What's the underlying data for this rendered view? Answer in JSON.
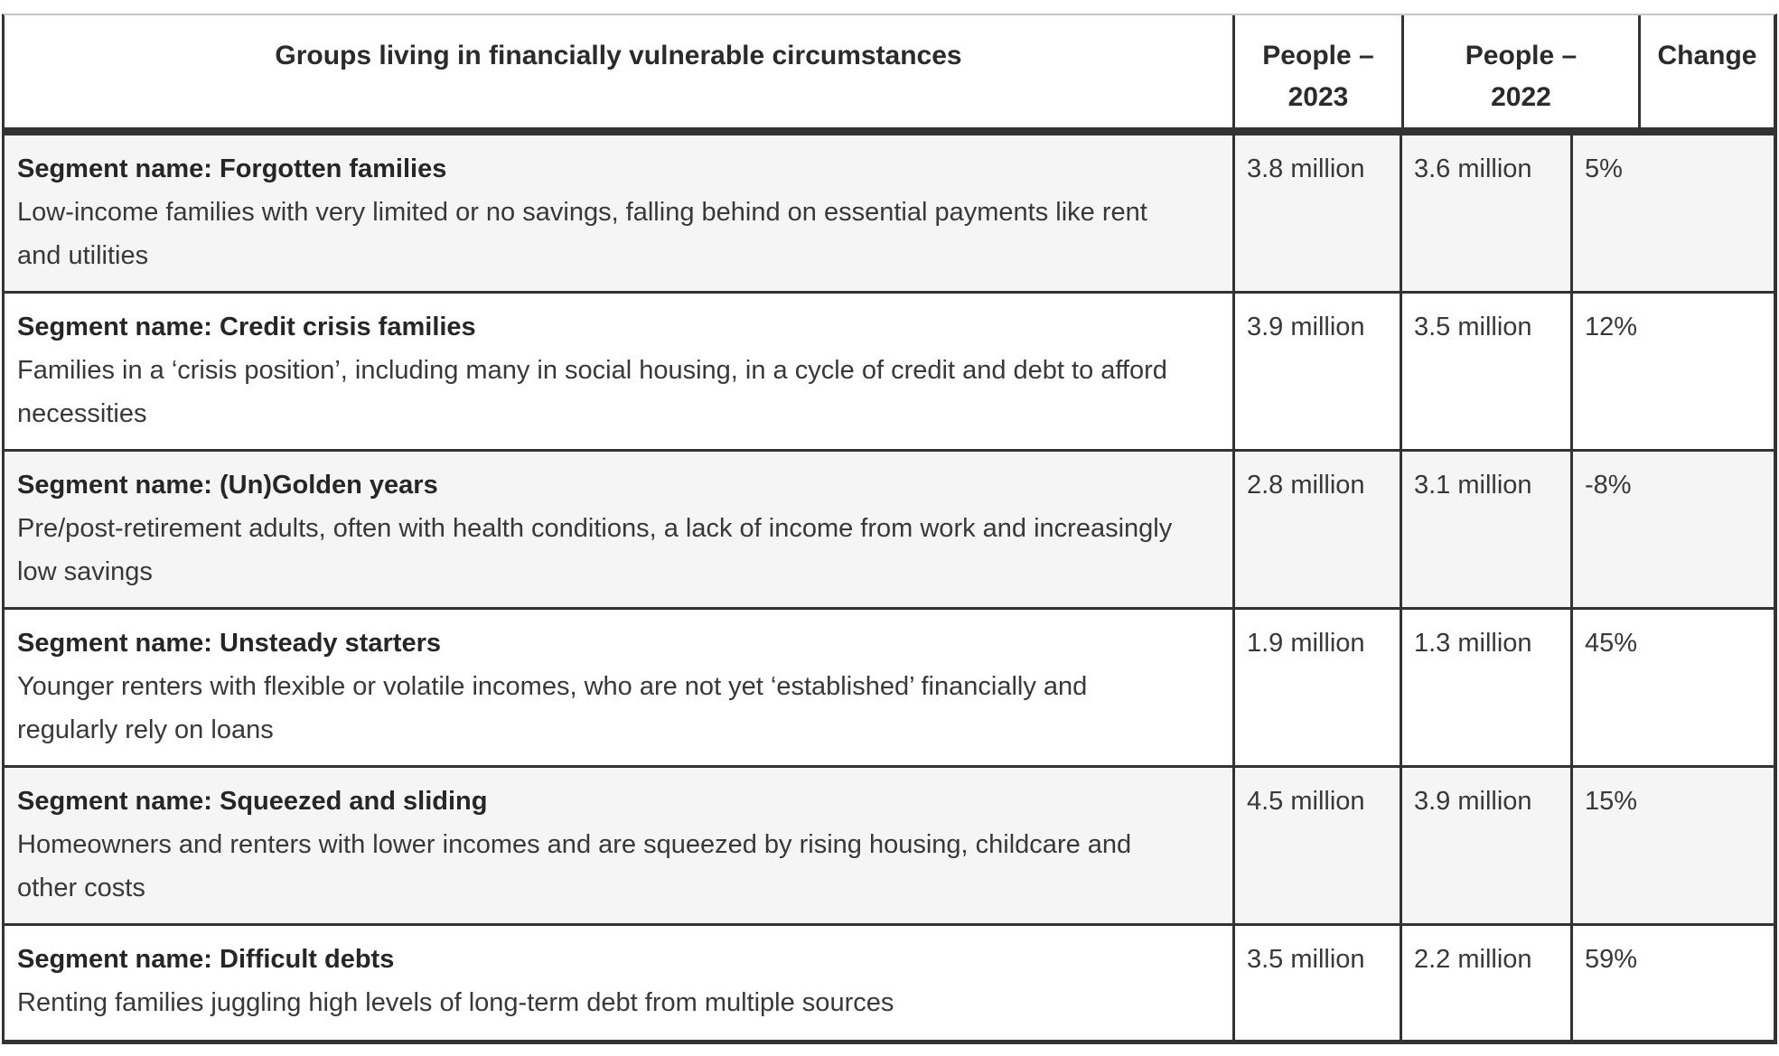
{
  "table": {
    "header": {
      "groups": "Groups living in financially vulnerable circumstances",
      "people_2023": "People –\n2023",
      "people_2022": "People –\n2022",
      "change": "Change"
    },
    "rows": [
      {
        "segment_label": "Segment name: Forgotten families",
        "description": "Low-income families with very limited or no savings, falling behind on essential payments like rent and utilities",
        "people_2023": "3.8 million",
        "people_2022": "3.6 million",
        "change": "5%"
      },
      {
        "segment_label": "Segment name: Credit crisis families",
        "description": "Families in a ‘crisis position’, including many in social housing, in a cycle of credit and debt to afford necessities",
        "people_2023": "3.9 million",
        "people_2022": "3.5 million",
        "change": "12%"
      },
      {
        "segment_label": "Segment name: (Un)Golden years",
        "description": "Pre/post-retirement adults, often with health conditions, a lack of income from work and increasingly low savings",
        "people_2023": "2.8 million",
        "people_2022": "3.1 million",
        "change": "-8%"
      },
      {
        "segment_label": "Segment name: Unsteady starters",
        "description": "Younger renters with flexible or volatile incomes, who are not yet ‘established’ financially and regularly rely on loans",
        "people_2023": "1.9 million",
        "people_2022": "1.3 million",
        "change": "45%"
      },
      {
        "segment_label": "Segment name: Squeezed and sliding",
        "description": "Homeowners and renters with lower incomes and are squeezed by rising housing, childcare and other costs",
        "people_2023": "4.5 million",
        "people_2022": "3.9 million",
        "change": "15%"
      },
      {
        "segment_label": "Segment name: Difficult debts",
        "description": "Renting families juggling high levels of long-term debt from multiple sources",
        "people_2023": "3.5 million",
        "people_2022": "2.2 million",
        "change": "59%"
      }
    ]
  }
}
